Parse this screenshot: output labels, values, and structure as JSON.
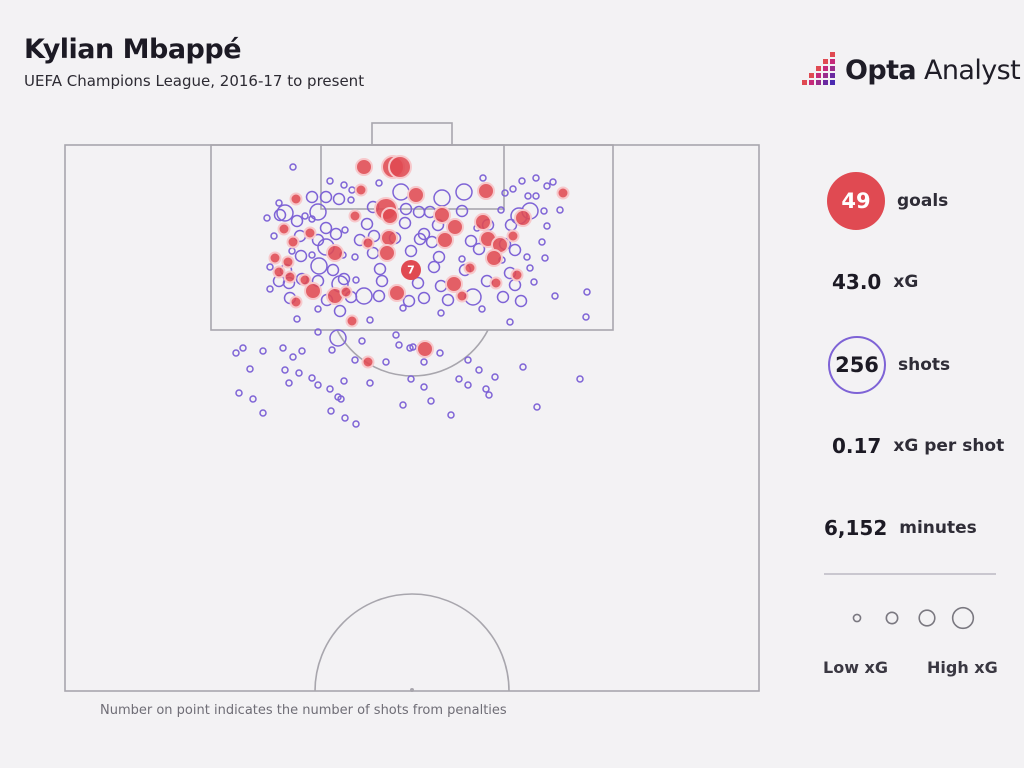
{
  "header": {
    "title": "Kylian Mbappé",
    "subtitle": "UEFA Champions League, 2016-17 to present"
  },
  "brand": {
    "name_bold": "Opta",
    "name_light": "Analyst"
  },
  "stats": {
    "goals": {
      "value": "49",
      "label": "goals"
    },
    "xg": {
      "value": "43.0",
      "label": "xG"
    },
    "shots": {
      "value": "256",
      "label": "shots"
    },
    "xg_per_shot": {
      "value": "0.17",
      "label": "xG per shot"
    },
    "minutes": {
      "value": "6,152",
      "label": "minutes"
    }
  },
  "legend": {
    "low": "Low xG",
    "high": "High xG"
  },
  "footnote": "Number on point indicates the number of shots from penalties",
  "colors": {
    "goal": "#e04a52",
    "miss": "#7e63d6",
    "pitch_line": "#a8a6ad",
    "background": "#f3f2f4"
  },
  "chart_data": {
    "type": "scatter",
    "penalty_label": "7",
    "series": [
      {
        "name": "goals",
        "points": [
          [
            393,
            167,
            "h"
          ],
          [
            400,
            167,
            "h"
          ],
          [
            364,
            167,
            "m"
          ],
          [
            416,
            195,
            "m"
          ],
          [
            486,
            191,
            "m"
          ],
          [
            563,
            193,
            "s"
          ],
          [
            361,
            190,
            "s"
          ],
          [
            386,
            209,
            "h"
          ],
          [
            390,
            216,
            "m"
          ],
          [
            442,
            215,
            "m"
          ],
          [
            523,
            218,
            "m"
          ],
          [
            296,
            199,
            "s"
          ],
          [
            355,
            216,
            "s"
          ],
          [
            483,
            222,
            "m"
          ],
          [
            455,
            227,
            "m"
          ],
          [
            389,
            238,
            "m"
          ],
          [
            445,
            240,
            "m"
          ],
          [
            488,
            239,
            "m"
          ],
          [
            500,
            245,
            "m"
          ],
          [
            513,
            236,
            "s"
          ],
          [
            293,
            242,
            "s"
          ],
          [
            284,
            229,
            "s"
          ],
          [
            368,
            243,
            "s"
          ],
          [
            335,
            253,
            "m"
          ],
          [
            387,
            253,
            "m"
          ],
          [
            494,
            258,
            "m"
          ],
          [
            310,
            233,
            "s"
          ],
          [
            275,
            258,
            "s"
          ],
          [
            288,
            262,
            "s"
          ],
          [
            279,
            272,
            "s"
          ],
          [
            290,
            277,
            "s"
          ],
          [
            313,
            291,
            "m"
          ],
          [
            335,
            296,
            "m"
          ],
          [
            397,
            293,
            "m"
          ],
          [
            454,
            284,
            "m"
          ],
          [
            496,
            283,
            "s"
          ],
          [
            462,
            296,
            "s"
          ],
          [
            296,
            302,
            "s"
          ],
          [
            352,
            321,
            "s"
          ],
          [
            305,
            280,
            "s"
          ],
          [
            425,
            349,
            "m"
          ],
          [
            368,
            362,
            "s"
          ],
          [
            470,
            268,
            "s"
          ],
          [
            517,
            275,
            "s"
          ],
          [
            346,
            292,
            "s"
          ]
        ],
        "penalty_point": [
          411,
          270
        ]
      },
      {
        "name": "shots",
        "points": [
          [
            293,
            167,
            "xs"
          ],
          [
            330,
            181,
            "xs"
          ],
          [
            344,
            185,
            "xs"
          ],
          [
            352,
            190,
            "xs"
          ],
          [
            379,
            183,
            "xs"
          ],
          [
            401,
            192,
            "m"
          ],
          [
            464,
            192,
            "m"
          ],
          [
            442,
            198,
            "m"
          ],
          [
            483,
            178,
            "xs"
          ],
          [
            522,
            181,
            "xs"
          ],
          [
            536,
            178,
            "xs"
          ],
          [
            547,
            186,
            "xs"
          ],
          [
            513,
            189,
            "xs"
          ],
          [
            505,
            193,
            "xs"
          ],
          [
            528,
            196,
            "xs"
          ],
          [
            536,
            196,
            "xs"
          ],
          [
            553,
            182,
            "xs"
          ],
          [
            312,
            197,
            "s"
          ],
          [
            326,
            197,
            "s"
          ],
          [
            279,
            203,
            "xs"
          ],
          [
            285,
            213,
            "m"
          ],
          [
            280,
            215,
            "s"
          ],
          [
            297,
            221,
            "s"
          ],
          [
            318,
            212,
            "m"
          ],
          [
            339,
            199,
            "s"
          ],
          [
            351,
            200,
            "xs"
          ],
          [
            373,
            207,
            "s"
          ],
          [
            406,
            209,
            "s"
          ],
          [
            419,
            212,
            "s"
          ],
          [
            430,
            212,
            "s"
          ],
          [
            462,
            211,
            "s"
          ],
          [
            501,
            210,
            "xs"
          ],
          [
            519,
            216,
            "m"
          ],
          [
            530,
            211,
            "m"
          ],
          [
            544,
            211,
            "xs"
          ],
          [
            560,
            210,
            "xs"
          ],
          [
            267,
            218,
            "xs"
          ],
          [
            305,
            216,
            "xs"
          ],
          [
            312,
            219,
            "xs"
          ],
          [
            326,
            228,
            "s"
          ],
          [
            336,
            234,
            "s"
          ],
          [
            345,
            230,
            "xs"
          ],
          [
            367,
            224,
            "s"
          ],
          [
            405,
            223,
            "s"
          ],
          [
            424,
            234,
            "s"
          ],
          [
            438,
            225,
            "s"
          ],
          [
            477,
            228,
            "xs"
          ],
          [
            488,
            225,
            "s"
          ],
          [
            511,
            225,
            "s"
          ],
          [
            547,
            226,
            "xs"
          ],
          [
            274,
            236,
            "xs"
          ],
          [
            300,
            236,
            "s"
          ],
          [
            318,
            240,
            "s"
          ],
          [
            326,
            247,
            "m"
          ],
          [
            360,
            240,
            "s"
          ],
          [
            374,
            236,
            "s"
          ],
          [
            395,
            238,
            "s"
          ],
          [
            420,
            239,
            "s"
          ],
          [
            432,
            242,
            "s"
          ],
          [
            471,
            241,
            "s"
          ],
          [
            505,
            244,
            "s"
          ],
          [
            515,
            250,
            "s"
          ],
          [
            542,
            242,
            "xs"
          ],
          [
            292,
            251,
            "xs"
          ],
          [
            301,
            256,
            "s"
          ],
          [
            312,
            255,
            "xs"
          ],
          [
            343,
            255,
            "xs"
          ],
          [
            355,
            257,
            "xs"
          ],
          [
            373,
            253,
            "s"
          ],
          [
            411,
            251,
            "s"
          ],
          [
            439,
            257,
            "s"
          ],
          [
            462,
            259,
            "xs"
          ],
          [
            479,
            249,
            "s"
          ],
          [
            502,
            260,
            "xs"
          ],
          [
            527,
            257,
            "xs"
          ],
          [
            545,
            258,
            "xs"
          ],
          [
            270,
            267,
            "xs"
          ],
          [
            286,
            270,
            "s"
          ],
          [
            319,
            266,
            "m"
          ],
          [
            333,
            270,
            "s"
          ],
          [
            380,
            269,
            "s"
          ],
          [
            434,
            267,
            "s"
          ],
          [
            465,
            270,
            "s"
          ],
          [
            510,
            273,
            "s"
          ],
          [
            530,
            268,
            "xs"
          ],
          [
            279,
            281,
            "s"
          ],
          [
            289,
            283,
            "s"
          ],
          [
            302,
            279,
            "s"
          ],
          [
            318,
            281,
            "s"
          ],
          [
            344,
            279,
            "s"
          ],
          [
            340,
            284,
            "m"
          ],
          [
            356,
            280,
            "xs"
          ],
          [
            382,
            281,
            "s"
          ],
          [
            418,
            283,
            "s"
          ],
          [
            441,
            286,
            "s"
          ],
          [
            487,
            281,
            "s"
          ],
          [
            515,
            285,
            "s"
          ],
          [
            534,
            282,
            "xs"
          ],
          [
            270,
            289,
            "xs"
          ],
          [
            290,
            298,
            "s"
          ],
          [
            327,
            300,
            "s"
          ],
          [
            351,
            297,
            "s"
          ],
          [
            364,
            296,
            "m"
          ],
          [
            409,
            301,
            "s"
          ],
          [
            424,
            298,
            "s"
          ],
          [
            448,
            300,
            "s"
          ],
          [
            473,
            297,
            "m"
          ],
          [
            503,
            297,
            "s"
          ],
          [
            521,
            301,
            "s"
          ],
          [
            555,
            296,
            "xs"
          ],
          [
            587,
            292,
            "xs"
          ],
          [
            318,
            309,
            "xs"
          ],
          [
            340,
            311,
            "s"
          ],
          [
            379,
            296,
            "s"
          ],
          [
            403,
            308,
            "xs"
          ],
          [
            441,
            313,
            "xs"
          ],
          [
            482,
            309,
            "xs"
          ],
          [
            297,
            319,
            "xs"
          ],
          [
            370,
            320,
            "xs"
          ],
          [
            510,
            322,
            "xs"
          ],
          [
            318,
            332,
            "xs"
          ],
          [
            338,
            338,
            "m"
          ],
          [
            362,
            341,
            "xs"
          ],
          [
            396,
            335,
            "xs"
          ],
          [
            399,
            345,
            "xs"
          ],
          [
            243,
            348,
            "xs"
          ],
          [
            263,
            351,
            "xs"
          ],
          [
            236,
            353,
            "xs"
          ],
          [
            283,
            348,
            "xs"
          ],
          [
            293,
            357,
            "xs"
          ],
          [
            302,
            351,
            "xs"
          ],
          [
            332,
            350,
            "xs"
          ],
          [
            410,
            348,
            "xs"
          ],
          [
            413,
            347,
            "xs"
          ],
          [
            440,
            353,
            "xs"
          ],
          [
            250,
            369,
            "xs"
          ],
          [
            285,
            370,
            "xs"
          ],
          [
            355,
            360,
            "xs"
          ],
          [
            386,
            362,
            "xs"
          ],
          [
            424,
            362,
            "xs"
          ],
          [
            468,
            360,
            "xs"
          ],
          [
            479,
            370,
            "xs"
          ],
          [
            523,
            367,
            "xs"
          ],
          [
            299,
            373,
            "xs"
          ],
          [
            312,
            378,
            "xs"
          ],
          [
            344,
            381,
            "xs"
          ],
          [
            411,
            379,
            "xs"
          ],
          [
            459,
            379,
            "xs"
          ],
          [
            495,
            377,
            "xs"
          ],
          [
            580,
            379,
            "xs"
          ],
          [
            289,
            383,
            "xs"
          ],
          [
            318,
            385,
            "xs"
          ],
          [
            330,
            389,
            "xs"
          ],
          [
            370,
            383,
            "xs"
          ],
          [
            424,
            387,
            "xs"
          ],
          [
            468,
            385,
            "xs"
          ],
          [
            486,
            389,
            "xs"
          ],
          [
            239,
            393,
            "xs"
          ],
          [
            253,
            399,
            "xs"
          ],
          [
            338,
            397,
            "xs"
          ],
          [
            341,
            399,
            "xs"
          ],
          [
            403,
            405,
            "xs"
          ],
          [
            431,
            401,
            "xs"
          ],
          [
            489,
            395,
            "xs"
          ],
          [
            263,
            413,
            "xs"
          ],
          [
            331,
            411,
            "xs"
          ],
          [
            345,
            418,
            "xs"
          ],
          [
            356,
            424,
            "xs"
          ],
          [
            451,
            415,
            "xs"
          ],
          [
            537,
            407,
            "xs"
          ],
          [
            586,
            317,
            "xs"
          ]
        ]
      }
    ],
    "size_scale": [
      "xs",
      "s",
      "m",
      "h"
    ],
    "legend_sizes": [
      "xs",
      "s",
      "m",
      "h"
    ]
  }
}
